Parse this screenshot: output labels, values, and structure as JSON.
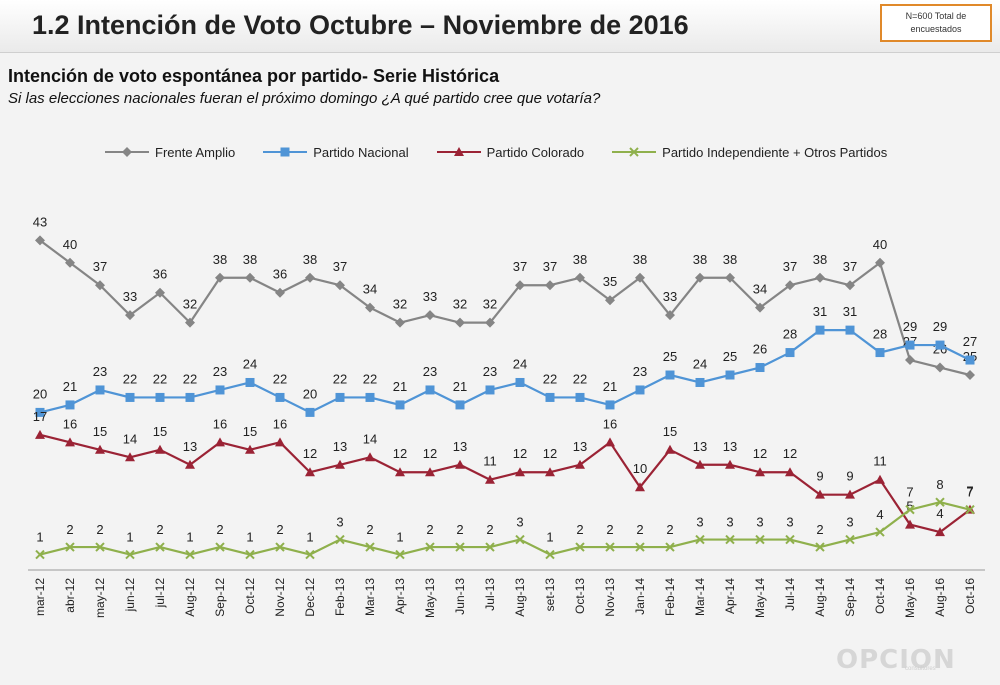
{
  "header": {
    "title": "1.2 Intención de Voto Octubre – Noviembre de  2016",
    "sample_note": "N=600 Total de encuestados"
  },
  "subtitle": "Intención de voto espontánea por partido- Serie Histórica",
  "question": "Si las elecciones nacionales fueran el próximo domingo ¿A qué partido cree que votaría?",
  "logo": {
    "text": "OPCION",
    "sub": "consultores"
  },
  "colors": {
    "frente_amplio": "#858585",
    "partido_nacional": "#4f94d6",
    "partido_colorado": "#9b2335",
    "independiente": "#8fb04c"
  },
  "chart_data": {
    "type": "line",
    "categories": [
      "mar-12",
      "abr-12",
      "may-12",
      "jun-12",
      "jul-12",
      "Aug-12",
      "Sep-12",
      "Oct-12",
      "Nov-12",
      "Dec-12",
      "Feb-13",
      "Mar-13",
      "Apr-13",
      "May-13",
      "Jun-13",
      "Jul-13",
      "Aug-13",
      "set-13",
      "Oct-13",
      "Nov-13",
      "Jan-14",
      "Feb-14",
      "Mar-14",
      "Apr-14",
      "May-14",
      "Jul-14",
      "Aug-14",
      "Sep-14",
      "Oct-14",
      "May-16",
      "Aug-16",
      "Oct-16"
    ],
    "series": [
      {
        "name": "Frente Amplio",
        "color": "#858585",
        "marker": "diamond",
        "values": [
          43,
          40,
          37,
          33,
          36,
          32,
          38,
          38,
          36,
          38,
          37,
          34,
          32,
          33,
          32,
          32,
          37,
          37,
          38,
          35,
          38,
          33,
          38,
          38,
          34,
          37,
          38,
          37,
          40,
          27,
          26,
          25
        ]
      },
      {
        "name": "Partido Nacional",
        "color": "#4f94d6",
        "marker": "square",
        "values": [
          20,
          21,
          23,
          22,
          22,
          22,
          23,
          24,
          22,
          20,
          22,
          22,
          21,
          23,
          21,
          23,
          24,
          22,
          22,
          21,
          23,
          25,
          24,
          25,
          26,
          28,
          31,
          31,
          28,
          29,
          29,
          27
        ]
      },
      {
        "name": "Partido Colorado",
        "color": "#9b2335",
        "marker": "triangle",
        "values": [
          17,
          16,
          15,
          14,
          15,
          13,
          16,
          15,
          16,
          12,
          13,
          14,
          12,
          12,
          13,
          11,
          12,
          12,
          13,
          16,
          10,
          15,
          13,
          13,
          12,
          12,
          9,
          9,
          11,
          5,
          4,
          7
        ]
      },
      {
        "name": "Partido Independiente + Otros Partidos",
        "color": "#8fb04c",
        "marker": "x",
        "values": [
          1,
          2,
          2,
          1,
          2,
          1,
          2,
          1,
          2,
          1,
          3,
          2,
          1,
          2,
          2,
          2,
          3,
          1,
          2,
          2,
          2,
          2,
          3,
          3,
          3,
          3,
          2,
          3,
          4,
          7,
          8,
          7
        ]
      }
    ],
    "legend": "top",
    "grid": false
  }
}
